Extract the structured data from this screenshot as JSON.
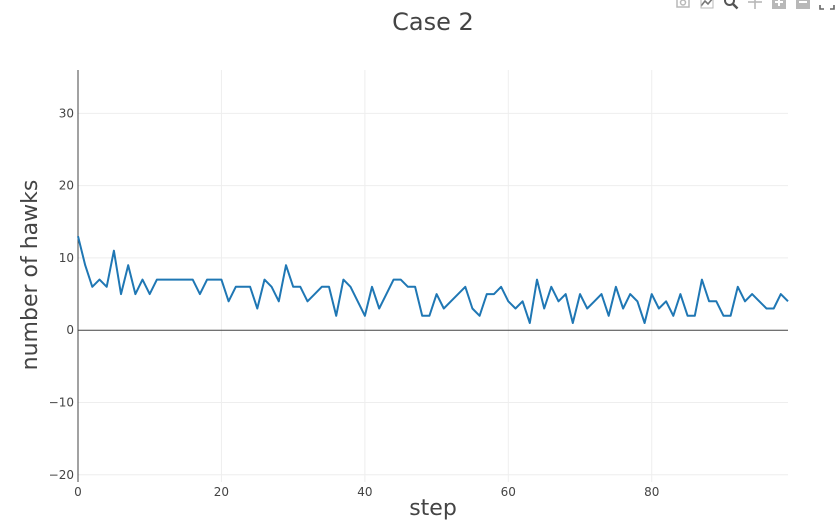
{
  "modebar": {
    "icons": [
      "camera-icon",
      "compare-icon",
      "zoom-icon",
      "pan-icon",
      "zoom-in-icon",
      "zoom-out-icon",
      "autoscale-icon"
    ]
  },
  "chart_data": {
    "type": "line",
    "title": "Case 2",
    "xlabel": "step",
    "ylabel": "number of hawks",
    "xlim": [
      0,
      99
    ],
    "ylim": [
      -21,
      36
    ],
    "xticks": [
      0,
      20,
      40,
      60,
      80
    ],
    "yticks": [
      -20,
      -10,
      0,
      10,
      20,
      30
    ],
    "grid": true,
    "line_color": "#1f77b4",
    "series": [
      {
        "x": [
          0,
          1,
          2,
          3,
          4,
          5,
          6,
          7,
          8,
          9,
          10,
          11,
          12,
          13,
          14,
          15,
          16,
          17,
          18,
          19,
          20,
          21,
          22,
          23,
          24,
          25,
          26,
          27,
          28,
          29,
          30,
          31,
          32,
          33,
          34,
          35,
          36,
          37,
          38,
          39,
          40,
          41,
          42,
          43,
          44,
          45,
          46,
          47,
          48,
          49,
          50,
          51,
          52,
          53,
          54,
          55,
          56,
          57,
          58,
          59,
          60,
          61,
          62,
          63,
          64,
          65,
          66,
          67,
          68,
          69,
          70,
          71,
          72,
          73,
          74,
          75,
          76,
          77,
          78,
          79,
          80,
          81,
          82,
          83,
          84,
          85,
          86,
          87,
          88,
          89,
          90,
          91,
          92,
          93,
          94,
          95,
          96,
          97,
          98,
          99
        ],
        "values": [
          13,
          9,
          6,
          7,
          6,
          11,
          5,
          9,
          5,
          7,
          5,
          7,
          7,
          7,
          7,
          7,
          7,
          5,
          7,
          7,
          7,
          4,
          6,
          6,
          6,
          3,
          7,
          6,
          4,
          9,
          6,
          6,
          4,
          5,
          6,
          6,
          2,
          7,
          6,
          4,
          2,
          6,
          3,
          5,
          7,
          7,
          6,
          6,
          2,
          2,
          5,
          3,
          4,
          5,
          6,
          3,
          2,
          5,
          5,
          6,
          4,
          3,
          4,
          1,
          7,
          3,
          6,
          4,
          5,
          1,
          5,
          3,
          4,
          5,
          2,
          6,
          3,
          5,
          4,
          1,
          5,
          3,
          4,
          2,
          5,
          2,
          2,
          7,
          4,
          4,
          2,
          2,
          6,
          4,
          5,
          4,
          3,
          3,
          5,
          4
        ]
      }
    ]
  }
}
